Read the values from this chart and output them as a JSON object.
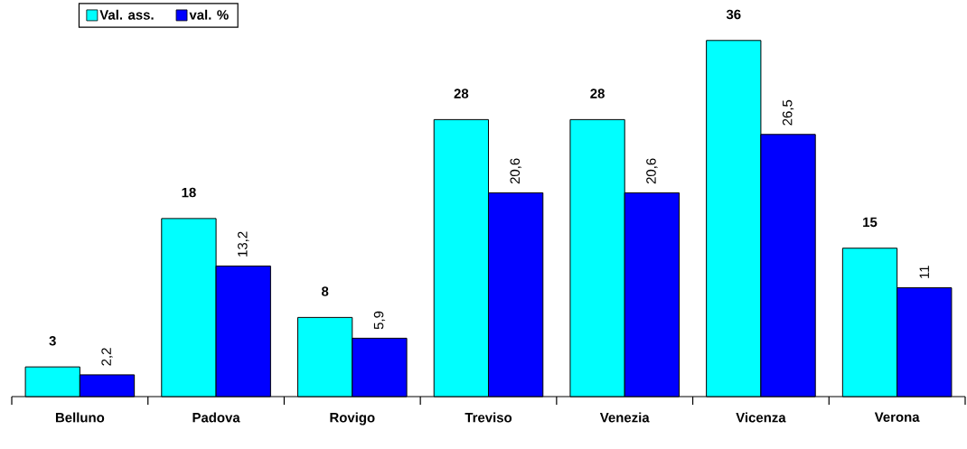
{
  "chart_data": {
    "type": "bar",
    "categories": [
      "Belluno",
      "Padova",
      "Rovigo",
      "Treviso",
      "Venezia",
      "Vicenza",
      "Verona"
    ],
    "series": [
      {
        "name": "Val. ass.",
        "color": "#00ffff",
        "values": [
          3,
          18,
          8,
          28,
          28,
          36,
          15
        ],
        "value_labels": [
          "3",
          "18",
          "8",
          "28",
          "28",
          "36",
          "15"
        ]
      },
      {
        "name": "val. %",
        "color": "#0000ff",
        "values": [
          2.2,
          13.2,
          5.9,
          20.6,
          20.6,
          26.5,
          11
        ],
        "value_labels": [
          "2,2",
          "13,2",
          "5,9",
          "20,6",
          "20,6",
          "26,5",
          "11"
        ]
      }
    ],
    "ylim": [
      0,
      40
    ],
    "legend": "top left"
  }
}
